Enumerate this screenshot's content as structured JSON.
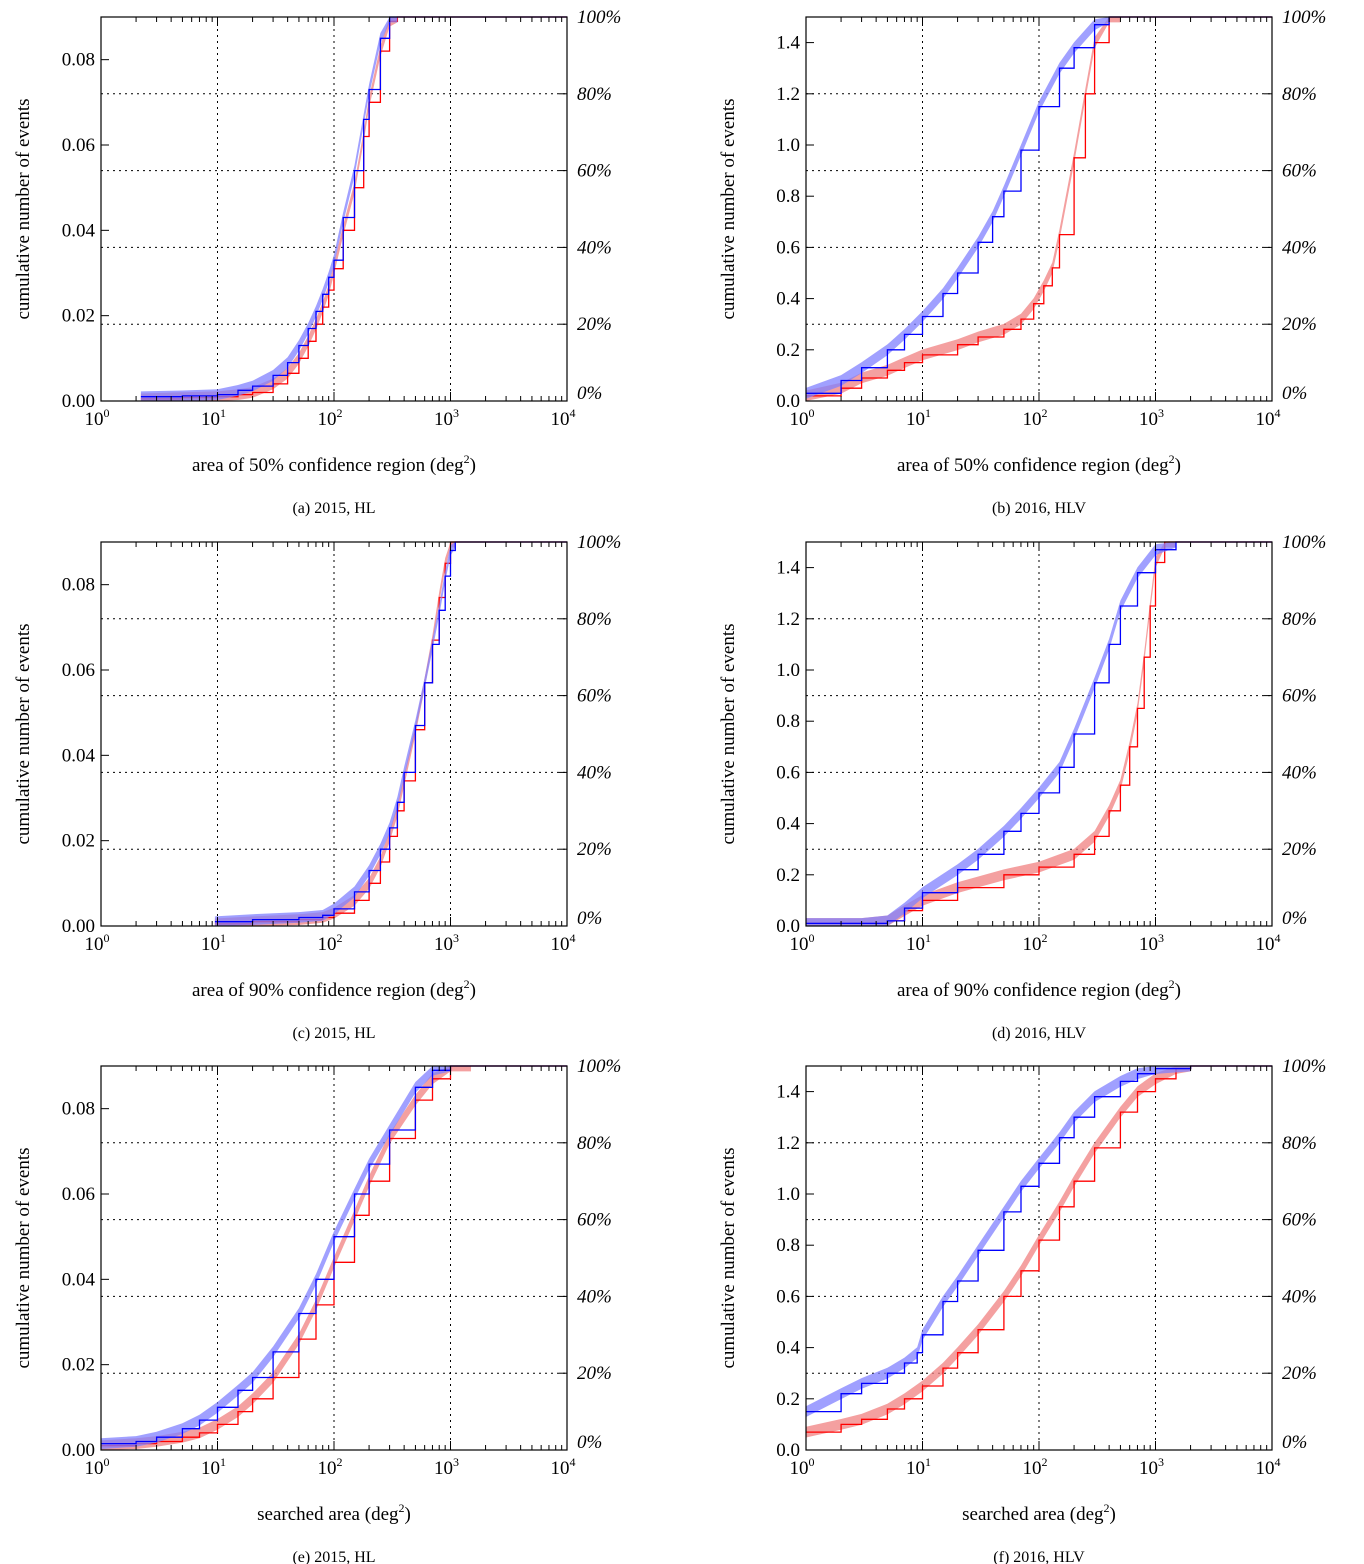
{
  "chart_data": [
    {
      "type": "line",
      "caption": "(a) 2015, HL",
      "xlabel": "area of 50% confidence region (deg",
      "xlabel_sup": "2",
      "xlabel_end": ")",
      "ylabel": "cumulative number of events",
      "xscale": "log",
      "xlim": [
        1,
        10000
      ],
      "ylim": [
        0,
        0.09
      ],
      "yticks": [
        0.0,
        0.02,
        0.04,
        0.06,
        0.08
      ],
      "ytick_labels": [
        "0.00",
        "0.02",
        "0.04",
        "0.06",
        "0.08"
      ],
      "xtick_exponents": [
        "0",
        "1",
        "2",
        "3",
        "4"
      ],
      "right_ticks": [
        "0%",
        "20%",
        "40%",
        "60%",
        "80%",
        "100%"
      ],
      "grid": true,
      "series": [
        {
          "color": "#ff0000",
          "band_color": "#f08080",
          "x": [
            2.2,
            5,
            10,
            15,
            20,
            30,
            40,
            50,
            60,
            70,
            80,
            90,
            100,
            120,
            150,
            180,
            200,
            250,
            300,
            350
          ],
          "y": [
            0.0005,
            0.0008,
            0.001,
            0.0015,
            0.002,
            0.004,
            0.0065,
            0.01,
            0.014,
            0.018,
            0.022,
            0.026,
            0.031,
            0.04,
            0.05,
            0.062,
            0.07,
            0.082,
            0.089,
            0.09
          ]
        },
        {
          "color": "#0000ff",
          "band_color": "#8080ff",
          "x": [
            2.2,
            5,
            10,
            15,
            20,
            30,
            40,
            50,
            60,
            70,
            80,
            90,
            100,
            120,
            150,
            180,
            200,
            250,
            300,
            350
          ],
          "y": [
            0.001,
            0.0012,
            0.0015,
            0.0025,
            0.0035,
            0.006,
            0.009,
            0.013,
            0.017,
            0.021,
            0.025,
            0.029,
            0.033,
            0.043,
            0.054,
            0.066,
            0.073,
            0.085,
            0.09,
            0.09
          ]
        }
      ]
    },
    {
      "type": "line",
      "caption": "(b) 2016, HLV",
      "xlabel": "area of 50% confidence region (deg",
      "xlabel_sup": "2",
      "xlabel_end": ")",
      "ylabel": "cumulative number of events",
      "xscale": "log",
      "xlim": [
        1,
        10000
      ],
      "ylim": [
        0,
        1.5
      ],
      "yticks": [
        0.0,
        0.2,
        0.4,
        0.6,
        0.8,
        1.0,
        1.2,
        1.4
      ],
      "ytick_labels": [
        "0.0",
        "0.2",
        "0.4",
        "0.6",
        "0.8",
        "1.0",
        "1.2",
        "1.4"
      ],
      "xtick_exponents": [
        "0",
        "1",
        "2",
        "3",
        "4"
      ],
      "right_ticks": [
        "0%",
        "20%",
        "40%",
        "60%",
        "80%",
        "100%"
      ],
      "grid": true,
      "series": [
        {
          "color": "#ff0000",
          "band_color": "#f08080",
          "x": [
            1,
            2,
            3,
            5,
            7,
            10,
            20,
            30,
            50,
            70,
            90,
            110,
            130,
            150,
            200,
            250,
            300,
            400,
            500
          ],
          "y": [
            0.02,
            0.05,
            0.09,
            0.12,
            0.15,
            0.18,
            0.22,
            0.25,
            0.28,
            0.32,
            0.38,
            0.45,
            0.52,
            0.65,
            0.95,
            1.2,
            1.4,
            1.5,
            1.5
          ]
        },
        {
          "color": "#0000ff",
          "band_color": "#8080ff",
          "x": [
            1,
            2,
            3,
            5,
            7,
            10,
            15,
            20,
            30,
            40,
            50,
            70,
            100,
            150,
            200,
            300,
            400
          ],
          "y": [
            0.03,
            0.08,
            0.13,
            0.2,
            0.26,
            0.33,
            0.42,
            0.5,
            0.62,
            0.72,
            0.82,
            0.98,
            1.15,
            1.3,
            1.38,
            1.47,
            1.5
          ]
        }
      ]
    },
    {
      "type": "line",
      "caption": "(c) 2015, HL",
      "xlabel": "area of 90% confidence region (deg",
      "xlabel_sup": "2",
      "xlabel_end": ")",
      "ylabel": "cumulative number of events",
      "xscale": "log",
      "xlim": [
        1,
        10000
      ],
      "ylim": [
        0,
        0.09
      ],
      "yticks": [
        0.0,
        0.02,
        0.04,
        0.06,
        0.08
      ],
      "ytick_labels": [
        "0.00",
        "0.02",
        "0.04",
        "0.06",
        "0.08"
      ],
      "xtick_exponents": [
        "0",
        "1",
        "2",
        "3",
        "4"
      ],
      "right_ticks": [
        "0%",
        "20%",
        "40%",
        "60%",
        "80%",
        "100%"
      ],
      "grid": true,
      "series": [
        {
          "color": "#ff0000",
          "band_color": "#f08080",
          "x": [
            9.5,
            20,
            50,
            80,
            100,
            150,
            200,
            250,
            300,
            350,
            400,
            500,
            600,
            700,
            800,
            900,
            1000,
            1100
          ],
          "y": [
            0.0005,
            0.001,
            0.0015,
            0.002,
            0.003,
            0.006,
            0.01,
            0.015,
            0.021,
            0.027,
            0.034,
            0.046,
            0.057,
            0.067,
            0.077,
            0.085,
            0.09,
            0.09
          ]
        },
        {
          "color": "#0000ff",
          "band_color": "#8080ff",
          "x": [
            9.5,
            20,
            50,
            80,
            100,
            150,
            200,
            250,
            300,
            350,
            400,
            500,
            600,
            700,
            800,
            900,
            1000,
            1100
          ],
          "y": [
            0.001,
            0.0015,
            0.002,
            0.0025,
            0.004,
            0.008,
            0.013,
            0.018,
            0.023,
            0.029,
            0.036,
            0.047,
            0.057,
            0.066,
            0.074,
            0.082,
            0.088,
            0.09
          ]
        }
      ]
    },
    {
      "type": "line",
      "caption": "(d) 2016, HLV",
      "xlabel": "area of 90% confidence region (deg",
      "xlabel_sup": "2",
      "xlabel_end": ")",
      "ylabel": "cumulative number of events",
      "xscale": "log",
      "xlim": [
        1,
        10000
      ],
      "ylim": [
        0,
        1.5
      ],
      "yticks": [
        0.0,
        0.2,
        0.4,
        0.6,
        0.8,
        1.0,
        1.2,
        1.4
      ],
      "ytick_labels": [
        "0.0",
        "0.2",
        "0.4",
        "0.6",
        "0.8",
        "1.0",
        "1.2",
        "1.4"
      ],
      "xtick_exponents": [
        "0",
        "1",
        "2",
        "3",
        "4"
      ],
      "right_ticks": [
        "0%",
        "20%",
        "40%",
        "60%",
        "80%",
        "100%"
      ],
      "grid": true,
      "series": [
        {
          "color": "#ff0000",
          "band_color": "#f08080",
          "x": [
            1,
            3,
            5,
            7,
            10,
            20,
            50,
            100,
            200,
            300,
            400,
            500,
            600,
            700,
            800,
            900,
            1000,
            1200,
            1500
          ],
          "y": [
            0.01,
            0.01,
            0.02,
            0.06,
            0.1,
            0.15,
            0.2,
            0.23,
            0.28,
            0.35,
            0.45,
            0.55,
            0.7,
            0.85,
            1.05,
            1.25,
            1.42,
            1.5,
            1.5
          ]
        },
        {
          "color": "#0000ff",
          "band_color": "#8080ff",
          "x": [
            1,
            3,
            5,
            7,
            10,
            20,
            30,
            50,
            70,
            100,
            150,
            200,
            300,
            400,
            500,
            700,
            1000,
            1500
          ],
          "y": [
            0.01,
            0.01,
            0.02,
            0.07,
            0.13,
            0.22,
            0.28,
            0.37,
            0.44,
            0.52,
            0.62,
            0.75,
            0.95,
            1.1,
            1.25,
            1.38,
            1.47,
            1.5
          ]
        }
      ]
    },
    {
      "type": "line",
      "caption": "(e) 2015, HL",
      "xlabel": "searched area (deg",
      "xlabel_sup": "2",
      "xlabel_end": ")",
      "ylabel": "cumulative number of events",
      "xscale": "log",
      "xlim": [
        1,
        10000
      ],
      "ylim": [
        0,
        0.09
      ],
      "yticks": [
        0.0,
        0.02,
        0.04,
        0.06,
        0.08
      ],
      "ytick_labels": [
        "0.00",
        "0.02",
        "0.04",
        "0.06",
        "0.08"
      ],
      "xtick_exponents": [
        "0",
        "1",
        "2",
        "3",
        "4"
      ],
      "right_ticks": [
        "0%",
        "20%",
        "40%",
        "60%",
        "80%",
        "100%"
      ],
      "grid": true,
      "series": [
        {
          "color": "#ff0000",
          "band_color": "#f08080",
          "x": [
            1,
            2,
            3,
            5,
            7,
            10,
            15,
            20,
            30,
            50,
            70,
            100,
            150,
            200,
            300,
            500,
            700,
            1000,
            1500
          ],
          "y": [
            0.001,
            0.0015,
            0.002,
            0.003,
            0.004,
            0.006,
            0.009,
            0.012,
            0.017,
            0.026,
            0.034,
            0.044,
            0.055,
            0.063,
            0.073,
            0.082,
            0.087,
            0.09,
            0.09
          ]
        },
        {
          "color": "#0000ff",
          "band_color": "#8080ff",
          "x": [
            1,
            2,
            3,
            5,
            7,
            10,
            15,
            20,
            30,
            50,
            70,
            100,
            150,
            200,
            300,
            500,
            700,
            1000
          ],
          "y": [
            0.0015,
            0.002,
            0.003,
            0.005,
            0.007,
            0.01,
            0.014,
            0.017,
            0.023,
            0.032,
            0.04,
            0.05,
            0.06,
            0.067,
            0.075,
            0.085,
            0.089,
            0.09
          ]
        }
      ]
    },
    {
      "type": "line",
      "caption": "(f) 2016, HLV",
      "xlabel": "searched area (deg",
      "xlabel_sup": "2",
      "xlabel_end": ")",
      "ylabel": "cumulative number of events",
      "xscale": "log",
      "xlim": [
        1,
        10000
      ],
      "ylim": [
        0,
        1.5
      ],
      "yticks": [
        0.0,
        0.2,
        0.4,
        0.6,
        0.8,
        1.0,
        1.2,
        1.4
      ],
      "ytick_labels": [
        "0.0",
        "0.2",
        "0.4",
        "0.6",
        "0.8",
        "1.0",
        "1.2",
        "1.4"
      ],
      "xtick_exponents": [
        "0",
        "1",
        "2",
        "3",
        "4"
      ],
      "right_ticks": [
        "0%",
        "20%",
        "40%",
        "60%",
        "80%",
        "100%"
      ],
      "grid": true,
      "series": [
        {
          "color": "#ff0000",
          "band_color": "#f08080",
          "x": [
            1,
            2,
            3,
            5,
            7,
            10,
            15,
            20,
            30,
            50,
            70,
            100,
            150,
            200,
            300,
            500,
            700,
            1000,
            1500,
            2000
          ],
          "y": [
            0.07,
            0.1,
            0.12,
            0.16,
            0.2,
            0.25,
            0.32,
            0.38,
            0.47,
            0.6,
            0.7,
            0.82,
            0.95,
            1.05,
            1.18,
            1.32,
            1.4,
            1.45,
            1.49,
            1.5
          ]
        },
        {
          "color": "#0000ff",
          "band_color": "#8080ff",
          "x": [
            1,
            2,
            3,
            5,
            7,
            9,
            10,
            15,
            20,
            30,
            50,
            70,
            100,
            150,
            200,
            300,
            500,
            700,
            1000,
            2000
          ],
          "y": [
            0.15,
            0.22,
            0.26,
            0.3,
            0.34,
            0.38,
            0.45,
            0.58,
            0.66,
            0.78,
            0.93,
            1.03,
            1.12,
            1.22,
            1.3,
            1.38,
            1.44,
            1.47,
            1.49,
            1.5
          ]
        }
      ]
    }
  ]
}
